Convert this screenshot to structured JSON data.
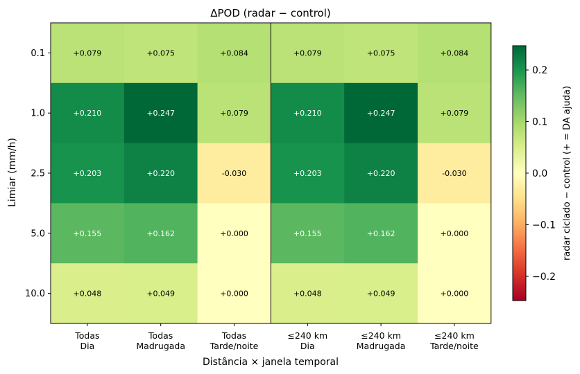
{
  "chart_data": {
    "type": "heatmap",
    "title": "ΔPOD  (radar − control)",
    "xlabel": "Distância × janela temporal",
    "ylabel": "Limiar (mm/h)",
    "x_categories": [
      [
        "Todas",
        "Dia"
      ],
      [
        "Todas",
        "Madrugada"
      ],
      [
        "Todas",
        "Tarde/noite"
      ],
      [
        "≤240 km",
        "Dia"
      ],
      [
        "≤240 km",
        "Madrugada"
      ],
      [
        "≤240 km",
        "Tarde/noite"
      ]
    ],
    "y_categories": [
      "0.1",
      "1.0",
      "2.5",
      "5.0",
      "10.0"
    ],
    "values": [
      [
        0.079,
        0.075,
        0.084,
        0.079,
        0.075,
        0.084
      ],
      [
        0.21,
        0.247,
        0.079,
        0.21,
        0.247,
        0.079
      ],
      [
        0.203,
        0.22,
        -0.03,
        0.203,
        0.22,
        -0.03
      ],
      [
        0.155,
        0.162,
        0.0,
        0.155,
        0.162,
        0.0
      ],
      [
        0.048,
        0.049,
        0.0,
        0.048,
        0.049,
        0.0
      ]
    ],
    "cell_labels": [
      [
        "+0.079",
        "+0.075",
        "+0.084",
        "+0.079",
        "+0.075",
        "+0.084"
      ],
      [
        "+0.210",
        "+0.247",
        "+0.079",
        "+0.210",
        "+0.247",
        "+0.079"
      ],
      [
        "+0.203",
        "+0.220",
        "-0.030",
        "+0.203",
        "+0.220",
        "-0.030"
      ],
      [
        "+0.155",
        "+0.162",
        "+0.000",
        "+0.155",
        "+0.162",
        "+0.000"
      ],
      [
        "+0.048",
        "+0.049",
        "+0.000",
        "+0.048",
        "+0.049",
        "+0.000"
      ]
    ],
    "colorbar": {
      "label": "radar ciclado − control  (+ = DA ajuda)",
      "colormap": "RdYlGn",
      "vmin": -0.247,
      "vmax": 0.247,
      "ticks": [
        0.2,
        0.1,
        0.0,
        -0.1,
        -0.2
      ],
      "tick_labels": [
        "0.2",
        "0.1",
        "0.0",
        "−0.1",
        "−0.2"
      ]
    },
    "group_divider_after_column": 3,
    "grid": false
  }
}
